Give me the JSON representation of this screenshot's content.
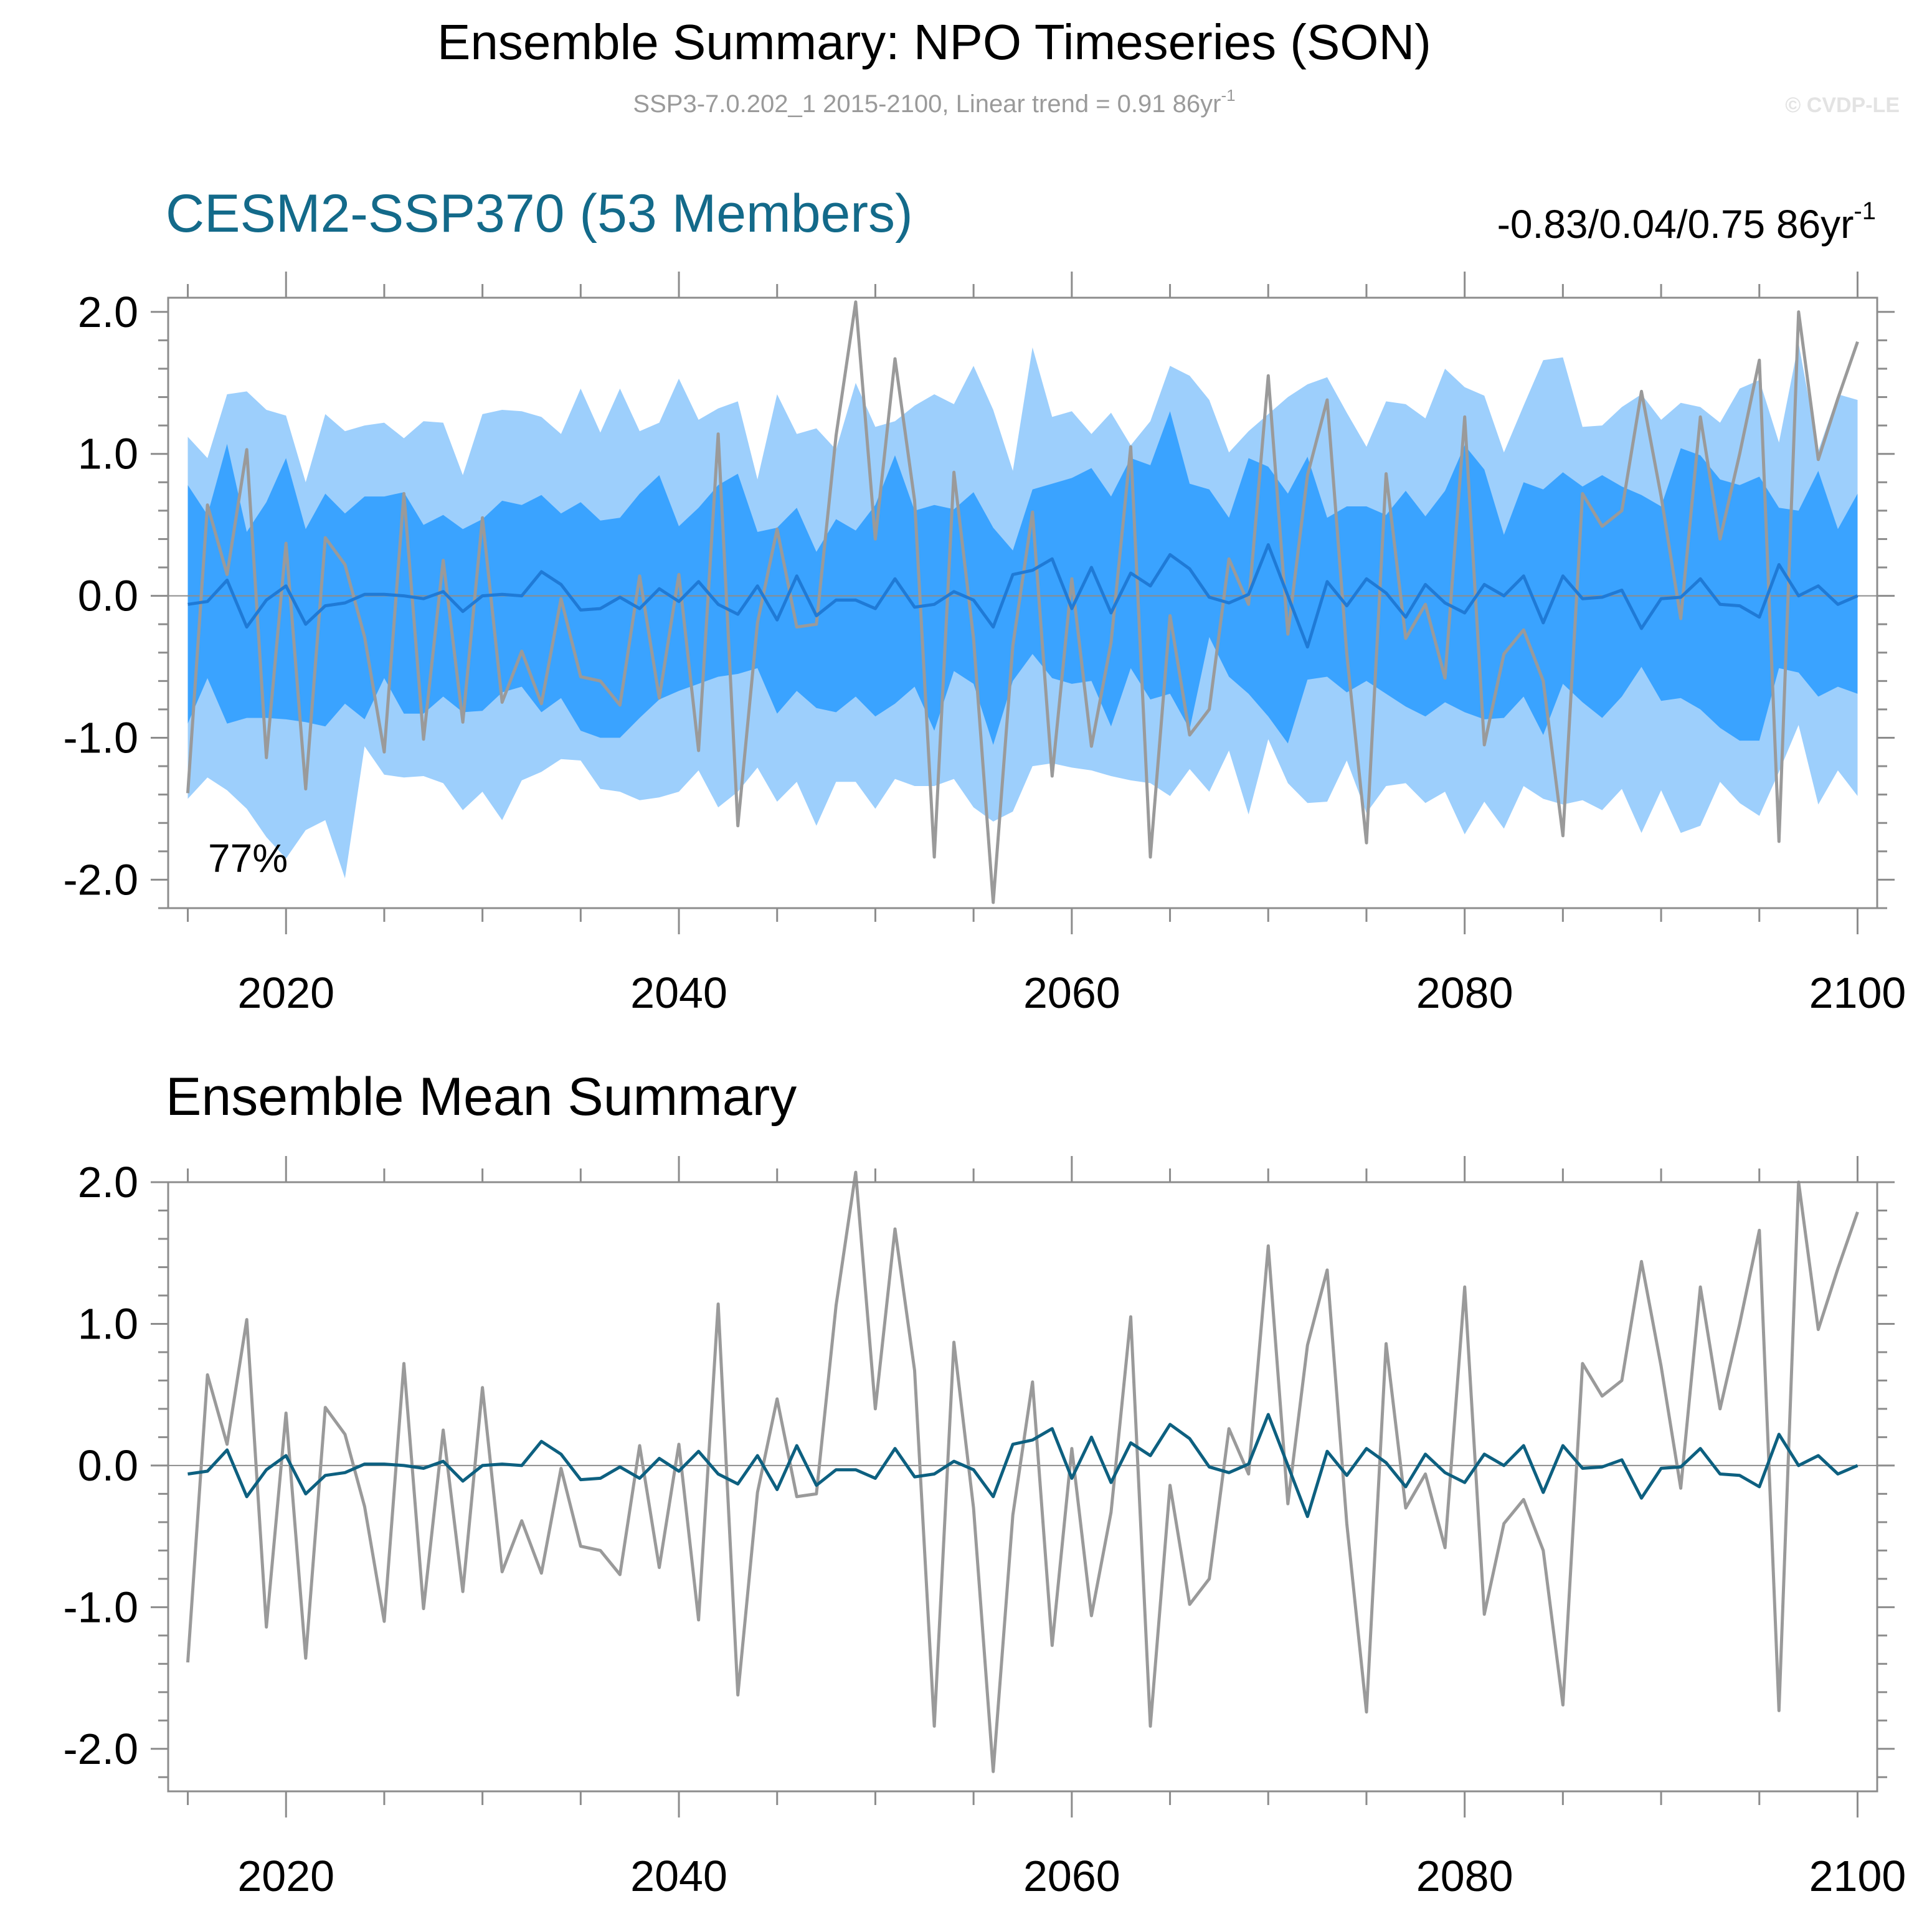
{
  "title": "Ensemble Summary: NPO Timeseries (SON)",
  "subtitle": "SSP3-7.0.202_1 2015-2100, Linear trend = 0.91 86yr",
  "subtitle_sup": "-1",
  "watermark": "© CVDP-LE",
  "colors": {
    "band_outer": "#9dcffc",
    "band_inner": "#3aa3ff",
    "ensemble_line_top": "#1f7ad6",
    "ensemble_line_bottom": "#0d6080",
    "observed_line": "#9a9a9a",
    "top_title": "#136a8a",
    "axis": "#8c8c8c"
  },
  "chart_data": [
    {
      "type": "area",
      "name": "top-panel",
      "title": "CESM2-SSP370 (53 Members)",
      "right_annotation": "-0.83/0.04/0.75 86yr",
      "right_annotation_sup": "-1",
      "inner_annotation": "77%",
      "xlim": [
        2014,
        2101
      ],
      "ylim": [
        -2.2,
        2.1
      ],
      "xticks": [
        2020,
        2040,
        2060,
        2080,
        2100
      ],
      "xtick_labels": [
        "2020",
        "2040",
        "2060",
        "2080",
        "2100"
      ],
      "yticks": [
        2.0,
        1.0,
        0.0,
        -1.0,
        -2.0
      ],
      "ytick_labels": [
        "2.0",
        "1.0",
        "0.0",
        "-1.0",
        "-2.0"
      ],
      "x": [
        2015,
        2016,
        2017,
        2018,
        2019,
        2020,
        2021,
        2022,
        2023,
        2024,
        2025,
        2026,
        2027,
        2028,
        2029,
        2030,
        2031,
        2032,
        2033,
        2034,
        2035,
        2036,
        2037,
        2038,
        2039,
        2040,
        2041,
        2042,
        2043,
        2044,
        2045,
        2046,
        2047,
        2048,
        2049,
        2050,
        2051,
        2052,
        2053,
        2054,
        2055,
        2056,
        2057,
        2058,
        2059,
        2060,
        2061,
        2062,
        2063,
        2064,
        2065,
        2066,
        2067,
        2068,
        2069,
        2070,
        2071,
        2072,
        2073,
        2074,
        2075,
        2076,
        2077,
        2078,
        2079,
        2080,
        2081,
        2082,
        2083,
        2084,
        2085,
        2086,
        2087,
        2088,
        2089,
        2090,
        2091,
        2092,
        2093,
        2094,
        2095,
        2096,
        2097,
        2098,
        2099,
        2100
      ],
      "series": [
        {
          "name": "range-max",
          "values": [
            1.12,
            0.97,
            1.42,
            1.44,
            1.31,
            1.27,
            0.8,
            1.28,
            1.16,
            1.2,
            1.22,
            1.11,
            1.23,
            1.22,
            0.85,
            1.28,
            1.31,
            1.3,
            1.26,
            1.14,
            1.46,
            1.15,
            1.46,
            1.16,
            1.22,
            1.53,
            1.24,
            1.32,
            1.37,
            0.82,
            1.42,
            1.14,
            1.18,
            1.03,
            1.5,
            1.19,
            1.23,
            1.34,
            1.42,
            1.35,
            1.62,
            1.31,
            0.88,
            1.75,
            1.26,
            1.3,
            1.14,
            1.29,
            1.06,
            1.23,
            1.62,
            1.55,
            1.38,
            1.01,
            1.16,
            1.28,
            1.4,
            1.49,
            1.54,
            1.29,
            1.05,
            1.37,
            1.35,
            1.25,
            1.6,
            1.47,
            1.41,
            1.01,
            1.34,
            1.66,
            1.68,
            1.19,
            1.2,
            1.33,
            1.42,
            1.24,
            1.36,
            1.33,
            1.22,
            1.46,
            1.52,
            1.08,
            1.78,
            1.02,
            1.42,
            1.38
          ]
        },
        {
          "name": "p90",
          "values": [
            0.78,
            0.57,
            1.07,
            0.45,
            0.66,
            0.97,
            0.47,
            0.72,
            0.58,
            0.7,
            0.7,
            0.73,
            0.5,
            0.57,
            0.47,
            0.54,
            0.67,
            0.64,
            0.71,
            0.58,
            0.66,
            0.53,
            0.55,
            0.72,
            0.85,
            0.49,
            0.62,
            0.78,
            0.86,
            0.45,
            0.48,
            0.62,
            0.31,
            0.54,
            0.46,
            0.64,
            0.99,
            0.6,
            0.64,
            0.61,
            0.73,
            0.48,
            0.32,
            0.75,
            0.79,
            0.83,
            0.9,
            0.7,
            0.97,
            0.92,
            1.3,
            0.79,
            0.75,
            0.55,
            0.97,
            0.91,
            0.72,
            0.98,
            0.55,
            0.63,
            0.63,
            0.57,
            0.74,
            0.56,
            0.74,
            1.06,
            0.89,
            0.43,
            0.8,
            0.75,
            0.87,
            0.77,
            0.85,
            0.77,
            0.71,
            0.63,
            1.04,
            0.99,
            0.82,
            0.78,
            0.84,
            0.62,
            0.6,
            0.88,
            0.47,
            0.72
          ]
        },
        {
          "name": "ensemble-mean",
          "values": [
            -0.06,
            -0.04,
            0.11,
            -0.22,
            -0.03,
            0.07,
            -0.2,
            -0.07,
            -0.05,
            0.01,
            0.01,
            0.0,
            -0.02,
            0.03,
            -0.11,
            0.0,
            0.01,
            0.0,
            0.17,
            0.08,
            -0.1,
            -0.09,
            -0.01,
            -0.09,
            0.05,
            -0.04,
            0.1,
            -0.06,
            -0.13,
            0.07,
            -0.17,
            0.14,
            -0.14,
            -0.03,
            -0.03,
            -0.09,
            0.12,
            -0.08,
            -0.06,
            0.03,
            -0.03,
            -0.22,
            0.15,
            0.18,
            0.26,
            -0.09,
            0.2,
            -0.12,
            0.16,
            0.07,
            0.29,
            0.19,
            -0.01,
            -0.05,
            0.01,
            0.36,
            0.0,
            -0.36,
            0.1,
            -0.07,
            0.12,
            0.02,
            -0.15,
            0.08,
            -0.05,
            -0.12,
            0.08,
            0.0,
            0.14,
            -0.19,
            0.14,
            -0.02,
            -0.01,
            0.04,
            -0.23,
            -0.02,
            -0.01,
            0.12,
            -0.06,
            -0.07,
            -0.15,
            0.22,
            0.0,
            0.07,
            -0.06,
            0.0
          ]
        },
        {
          "name": "p10",
          "values": [
            -0.9,
            -0.58,
            -0.9,
            -0.86,
            -0.86,
            -0.87,
            -0.89,
            -0.92,
            -0.76,
            -0.87,
            -0.58,
            -0.83,
            -0.83,
            -0.71,
            -0.82,
            -0.81,
            -0.68,
            -0.64,
            -0.82,
            -0.72,
            -0.95,
            -1.0,
            -1.0,
            -0.86,
            -0.73,
            -0.67,
            -0.62,
            -0.57,
            -0.55,
            -0.51,
            -0.83,
            -0.67,
            -0.79,
            -0.82,
            -0.71,
            -0.85,
            -0.76,
            -0.64,
            -0.95,
            -0.53,
            -0.62,
            -1.05,
            -0.6,
            -0.41,
            -0.58,
            -0.62,
            -0.6,
            -0.92,
            -0.51,
            -0.73,
            -0.69,
            -0.94,
            -0.29,
            -0.57,
            -0.69,
            -0.85,
            -1.04,
            -0.59,
            -0.57,
            -0.68,
            -0.6,
            -0.69,
            -0.78,
            -0.85,
            -0.75,
            -0.82,
            -0.87,
            -0.86,
            -0.71,
            -0.98,
            -0.62,
            -0.75,
            -0.86,
            -0.71,
            -0.5,
            -0.74,
            -0.72,
            -0.8,
            -0.93,
            -1.02,
            -1.02,
            -0.51,
            -0.54,
            -0.71,
            -0.64,
            -0.69
          ]
        },
        {
          "name": "range-min",
          "values": [
            -1.43,
            -1.28,
            -1.37,
            -1.5,
            -1.7,
            -1.85,
            -1.65,
            -1.58,
            -1.99,
            -1.06,
            -1.26,
            -1.28,
            -1.27,
            -1.32,
            -1.51,
            -1.38,
            -1.58,
            -1.3,
            -1.24,
            -1.15,
            -1.16,
            -1.36,
            -1.38,
            -1.44,
            -1.42,
            -1.38,
            -1.23,
            -1.49,
            -1.38,
            -1.21,
            -1.45,
            -1.31,
            -1.62,
            -1.31,
            -1.31,
            -1.5,
            -1.29,
            -1.34,
            -1.34,
            -1.29,
            -1.49,
            -1.59,
            -1.52,
            -1.2,
            -1.18,
            -1.21,
            -1.23,
            -1.27,
            -1.3,
            -1.32,
            -1.41,
            -1.22,
            -1.38,
            -1.09,
            -1.54,
            -1.01,
            -1.32,
            -1.46,
            -1.45,
            -1.16,
            -1.53,
            -1.34,
            -1.32,
            -1.46,
            -1.38,
            -1.68,
            -1.45,
            -1.64,
            -1.34,
            -1.43,
            -1.47,
            -1.44,
            -1.51,
            -1.36,
            -1.67,
            -1.37,
            -1.67,
            -1.62,
            -1.31,
            -1.46,
            -1.55,
            -1.24,
            -0.91,
            -1.47,
            -1.23,
            -1.41
          ]
        },
        {
          "name": "observed",
          "values": [
            -1.39,
            0.64,
            0.15,
            1.03,
            -1.14,
            0.37,
            -1.36,
            0.41,
            0.22,
            -0.29,
            -1.1,
            0.72,
            -1.01,
            0.25,
            -0.89,
            0.55,
            -0.75,
            -0.39,
            -0.76,
            -0.02,
            -0.57,
            -0.6,
            -0.77,
            0.14,
            -0.72,
            0.15,
            -1.09,
            1.14,
            -1.62,
            -0.19,
            0.47,
            -0.22,
            -0.2,
            1.13,
            2.07,
            0.4,
            1.67,
            0.67,
            -1.84,
            0.87,
            -0.3,
            -2.16,
            -0.35,
            0.59,
            -1.27,
            0.12,
            -1.06,
            -0.33,
            1.05,
            -1.84,
            -0.14,
            -0.98,
            -0.8,
            0.26,
            -0.06,
            1.55,
            -0.27,
            0.85,
            1.38,
            -0.41,
            -1.74,
            0.86,
            -0.3,
            -0.06,
            -0.58,
            1.26,
            -1.05,
            -0.41,
            -0.24,
            -0.6,
            -1.69,
            0.72,
            0.49,
            0.6,
            1.44,
            0.7,
            -0.16,
            1.26,
            0.4,
            1.0,
            1.66,
            -1.73,
            2.0,
            0.96,
            1.39,
            1.79
          ]
        }
      ]
    },
    {
      "type": "line",
      "name": "bottom-panel",
      "title": "Ensemble Mean Summary",
      "xlim": [
        2014,
        2101
      ],
      "ylim": [
        -2.3,
        2.0
      ],
      "xticks": [
        2020,
        2040,
        2060,
        2080,
        2100
      ],
      "xtick_labels": [
        "2020",
        "2040",
        "2060",
        "2080",
        "2100"
      ],
      "yticks": [
        2.0,
        1.0,
        0.0,
        -1.0,
        -2.0
      ],
      "ytick_labels": [
        "2.0",
        "1.0",
        "0.0",
        "-1.0",
        "-2.0"
      ],
      "series_ref": [
        "ensemble-mean",
        "observed"
      ]
    }
  ]
}
